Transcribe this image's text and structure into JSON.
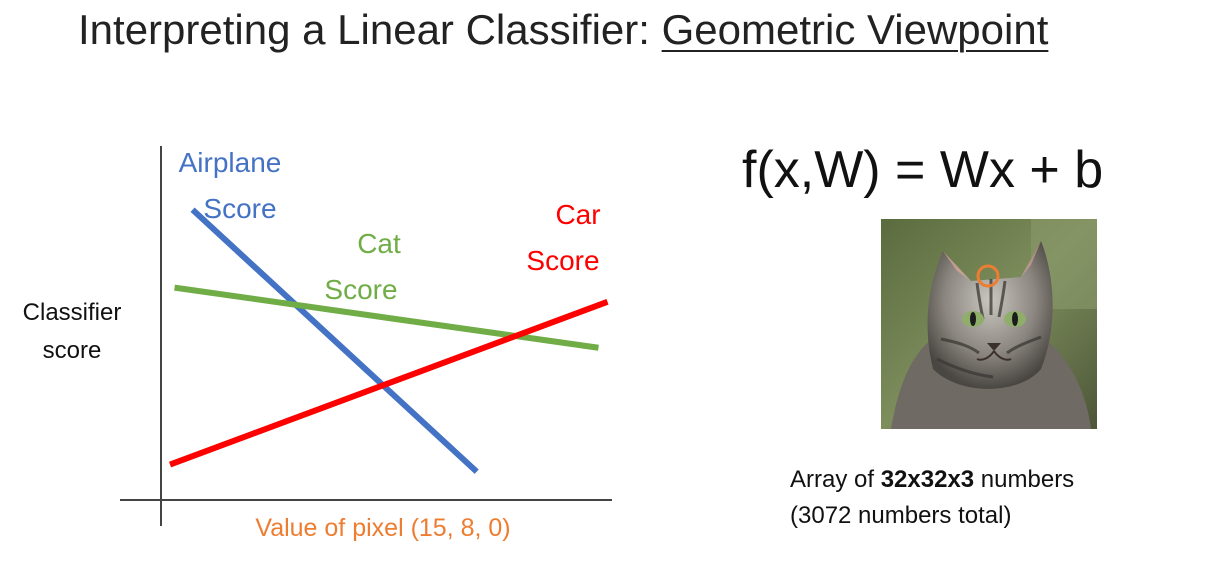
{
  "header": {
    "title_prefix": "Interpreting a Linear Classifier: ",
    "title_emphasis": "Geometric Viewpoint"
  },
  "chart_data": {
    "type": "line",
    "xlabel": "Value of pixel (15, 8, 0)",
    "ylabel_line1": "Classifier",
    "ylabel_line2": "score",
    "grid": false,
    "series": [
      {
        "name_line1": "Airplane",
        "name_line2": "Score",
        "color": "#4472c4",
        "x": [
          0.07,
          0.7
        ],
        "y": [
          0.82,
          0.08
        ]
      },
      {
        "name_line1": "Cat",
        "name_line2": "Score",
        "color": "#70ad47",
        "x": [
          0.03,
          0.97
        ],
        "y": [
          0.6,
          0.43
        ]
      },
      {
        "name_line1": "Car",
        "name_line2": "Score",
        "color": "#ff0000",
        "x": [
          0.02,
          0.99
        ],
        "y": [
          0.1,
          0.56
        ]
      }
    ]
  },
  "formula": "f(x,W) = Wx + b",
  "image": {
    "description_icon": "cat-photo",
    "marker_color": "#ed7d31"
  },
  "caption": {
    "prefix": "Array of ",
    "bold": "32x32x3",
    "suffix": " numbers",
    "line2": "(3072 numbers total)"
  }
}
